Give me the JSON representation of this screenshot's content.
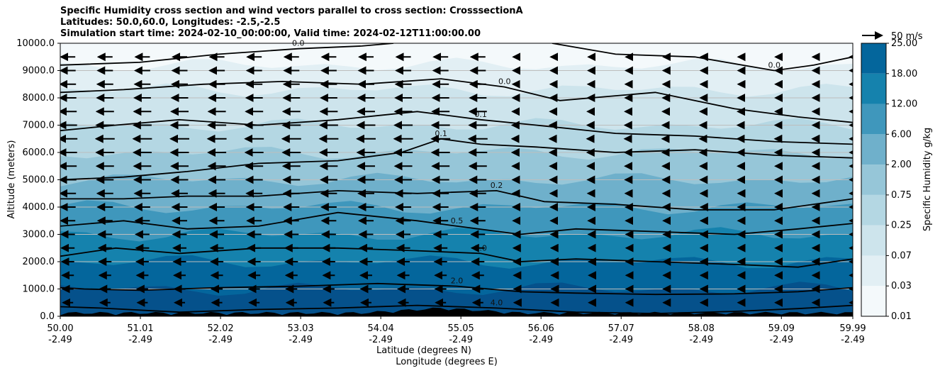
{
  "chart_data": {
    "type": "contour",
    "title_lines": [
      "Specific Humidity cross section and wind vectors parallel to cross section: CrosssectionA",
      "Latitudes: 50.0,60.0, Longitudes: -2.5,-2.5",
      "Simulation start time: 2024-02-10_00:00:00, Valid time: 2024-02-12T11:00:00.00"
    ],
    "ylabel": "Altitude (meters)",
    "xlabel_lat": "Latitude (degrees N)",
    "xlabel_lon": "Longitude (degrees E)",
    "ylim": [
      0,
      10000
    ],
    "yticks": [
      "0.0",
      "1000.0",
      "2000.0",
      "3000.0",
      "4000.0",
      "5000.0",
      "6000.0",
      "7000.0",
      "8000.0",
      "9000.0",
      "10000.0"
    ],
    "xlim": [
      50.0,
      59.99
    ],
    "xticks": [
      {
        "lat": "50.00",
        "lon": "-2.49"
      },
      {
        "lat": "51.01",
        "lon": "-2.49"
      },
      {
        "lat": "52.02",
        "lon": "-2.49"
      },
      {
        "lat": "53.03",
        "lon": "-2.49"
      },
      {
        "lat": "54.04",
        "lon": "-2.49"
      },
      {
        "lat": "55.05",
        "lon": "-2.49"
      },
      {
        "lat": "56.06",
        "lon": "-2.49"
      },
      {
        "lat": "57.07",
        "lon": "-2.49"
      },
      {
        "lat": "58.08",
        "lon": "-2.49"
      },
      {
        "lat": "59.09",
        "lon": "-2.49"
      },
      {
        "lat": "59.99",
        "lon": "-2.49"
      }
    ],
    "colorbar": {
      "label": "Specific Humidity g/kg",
      "levels": [
        "0.01",
        "0.03",
        "0.07",
        "0.25",
        "0.75",
        "2.00",
        "6.00",
        "12.00",
        "18.00",
        "25.00"
      ],
      "tick_labels": [
        "0.01",
        "0.03",
        "0.07",
        "0.25",
        "0.75",
        "2.00",
        "6.00",
        "12.00",
        "18.00",
        "25.00"
      ]
    },
    "quiver_key": "50 m/s",
    "contour_levels": [
      "0.0",
      "0.1",
      "0.2",
      "0.5",
      "1.0",
      "2.0",
      "4.0"
    ],
    "contours": [
      {
        "level": "4.0",
        "points": [
          [
            50.0,
            350
          ],
          [
            50.5,
            300
          ],
          [
            51.5,
            150
          ],
          [
            52.5,
            250
          ],
          [
            53.5,
            300
          ],
          [
            54.5,
            400
          ],
          [
            55.5,
            300
          ],
          [
            56.5,
            150
          ],
          [
            57.5,
            100
          ],
          [
            58.5,
            180
          ],
          [
            59.3,
            280
          ],
          [
            59.99,
            400
          ]
        ]
      },
      {
        "level": "2.0",
        "points": [
          [
            50.0,
            1050
          ],
          [
            50.3,
            1000
          ],
          [
            51.0,
            950
          ],
          [
            52.0,
            1050
          ],
          [
            53.0,
            1100
          ],
          [
            54.0,
            1200
          ],
          [
            55.0,
            1100
          ],
          [
            55.8,
            900
          ],
          [
            56.5,
            850
          ],
          [
            57.5,
            800
          ],
          [
            58.5,
            820
          ],
          [
            59.3,
            900
          ],
          [
            59.99,
            1050
          ]
        ]
      },
      {
        "level": "1.0",
        "points": [
          [
            50.0,
            2200
          ],
          [
            50.7,
            2500
          ],
          [
            51.5,
            2300
          ],
          [
            52.5,
            2500
          ],
          [
            53.5,
            2500
          ],
          [
            54.5,
            2400
          ],
          [
            55.3,
            2300
          ],
          [
            55.8,
            2000
          ],
          [
            56.5,
            2100
          ],
          [
            57.5,
            2000
          ],
          [
            58.5,
            1900
          ],
          [
            59.3,
            1800
          ],
          [
            59.99,
            2100
          ]
        ]
      },
      {
        "level": "0.5",
        "points": [
          [
            50.0,
            3300
          ],
          [
            50.8,
            3500
          ],
          [
            51.6,
            3200
          ],
          [
            52.5,
            3300
          ],
          [
            53.5,
            3800
          ],
          [
            54.5,
            3500
          ],
          [
            55.0,
            3300
          ],
          [
            55.8,
            3000
          ],
          [
            56.5,
            3200
          ],
          [
            57.5,
            3100
          ],
          [
            58.5,
            3000
          ],
          [
            59.3,
            3200
          ],
          [
            59.99,
            3400
          ]
        ]
      },
      {
        "level": "0.2",
        "points": [
          [
            50.0,
            4300
          ],
          [
            50.8,
            4300
          ],
          [
            51.6,
            4400
          ],
          [
            52.5,
            4400
          ],
          [
            53.5,
            4600
          ],
          [
            54.5,
            4500
          ],
          [
            55.5,
            4600
          ],
          [
            56.1,
            4200
          ],
          [
            57.0,
            4100
          ],
          [
            58.0,
            3900
          ],
          [
            59.0,
            3900
          ],
          [
            59.99,
            4300
          ]
        ]
      },
      {
        "level": "0.1",
        "points": [
          [
            50.0,
            5000
          ],
          [
            50.8,
            5100
          ],
          [
            51.6,
            5300
          ],
          [
            52.5,
            5600
          ],
          [
            53.5,
            5700
          ],
          [
            54.3,
            6000
          ],
          [
            54.8,
            6500
          ],
          [
            55.3,
            6300
          ],
          [
            56.0,
            6200
          ],
          [
            57.0,
            6000
          ],
          [
            58.0,
            6100
          ],
          [
            59.0,
            5900
          ],
          [
            59.99,
            5800
          ]
        ]
      },
      {
        "level": "0.1",
        "points": [
          [
            50.0,
            6800
          ],
          [
            50.7,
            7000
          ],
          [
            51.5,
            7200
          ],
          [
            52.5,
            7000
          ],
          [
            53.5,
            7200
          ],
          [
            54.5,
            7500
          ],
          [
            55.3,
            7200
          ],
          [
            56.0,
            7000
          ],
          [
            57.0,
            6700
          ],
          [
            58.0,
            6600
          ],
          [
            59.0,
            6400
          ],
          [
            59.99,
            6300
          ]
        ]
      },
      {
        "level": "0.0",
        "points": [
          [
            50.0,
            8200
          ],
          [
            50.8,
            8300
          ],
          [
            51.8,
            8500
          ],
          [
            52.8,
            8600
          ],
          [
            53.8,
            8500
          ],
          [
            54.8,
            8700
          ],
          [
            55.6,
            8400
          ],
          [
            56.3,
            7900
          ],
          [
            57.5,
            8200
          ],
          [
            58.5,
            7600
          ],
          [
            59.3,
            7300
          ],
          [
            59.99,
            7100
          ]
        ]
      },
      {
        "level": "0.0",
        "points": [
          [
            50.0,
            9200
          ],
          [
            51.0,
            9300
          ],
          [
            52.0,
            9600
          ],
          [
            53.0,
            9800
          ],
          [
            53.8,
            9900
          ],
          [
            54.2,
            10000
          ]
        ]
      },
      {
        "level": "0.0",
        "points": [
          [
            56.2,
            10000
          ],
          [
            57.0,
            9600
          ],
          [
            58.0,
            9500
          ],
          [
            59.0,
            9000
          ],
          [
            59.5,
            9200
          ],
          [
            59.99,
            9500
          ]
        ]
      }
    ],
    "wind_vectors": "mostly northward-negative (pointing toward lower latitude), strongest in mid-levels between 50-55 N",
    "terrain_max_m": 600
  }
}
